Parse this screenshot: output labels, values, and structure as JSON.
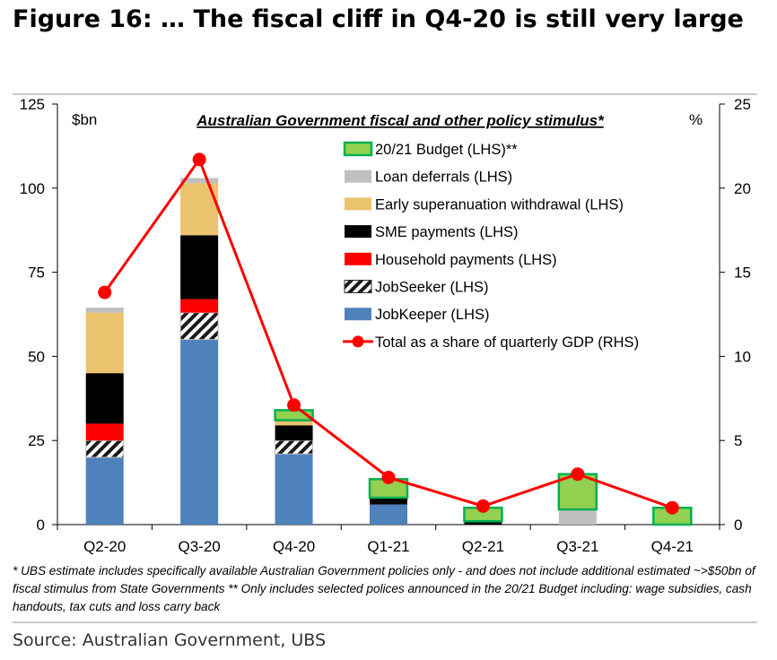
{
  "title": "Figure 16: … The fiscal cliff in Q4-20 is still very large",
  "footnote": "* UBS estimate includes specifically available Australian Government policies only - and does not  include additional estimated  ~>$50bn of fiscal stimulus from State Governments  ** Only includes selected polices announced in the 20/21 Budget including: wage subsidies, cash handouts, tax cuts and loss carry back",
  "source": "Source: Australian Government, UBS",
  "colors": {
    "jobkeeper": "#4f81bd",
    "jobseeker": "#ffffff",
    "household": "#ff0000",
    "sme": "#000000",
    "super": "#ebc26e",
    "loan": "#bfbfbf",
    "budget_fill": "#92d050",
    "budget_edge": "#00b050",
    "line": "#ff0000"
  },
  "chart_data": {
    "type": "bar",
    "stacked": true,
    "title": "Australian Government fiscal and other policy stimulus*",
    "ylabel_left": "$bn",
    "ylabel_right": "%",
    "ylim_left": [
      0,
      125
    ],
    "ylim_right": [
      0,
      25
    ],
    "yticks_left": [
      "0",
      "25",
      "50",
      "75",
      "100",
      "125"
    ],
    "yticks_right": [
      "0",
      "5",
      "10",
      "15",
      "20",
      "25"
    ],
    "categories": [
      "Q2-20",
      "Q3-20",
      "Q4-20",
      "Q1-21",
      "Q2-21",
      "Q3-21",
      "Q4-21"
    ],
    "series": [
      {
        "key": "jobkeeper",
        "name": "JobKeeper (LHS)",
        "axis": "left",
        "values": [
          20,
          55,
          21,
          6,
          0,
          0,
          0
        ]
      },
      {
        "key": "jobseeker",
        "name": "JobSeeker (LHS)",
        "axis": "left",
        "values": [
          5,
          8,
          4,
          0,
          0,
          0,
          0
        ]
      },
      {
        "key": "household",
        "name": "Household payments (LHS)",
        "axis": "left",
        "values": [
          5,
          4,
          0,
          0,
          0,
          0,
          0
        ]
      },
      {
        "key": "sme",
        "name": "SME payments (LHS)",
        "axis": "left",
        "values": [
          15,
          19,
          4.5,
          2,
          1,
          0,
          0
        ]
      },
      {
        "key": "super",
        "name": "Early superanuation withdrawal (LHS)",
        "axis": "left",
        "values": [
          18,
          15.5,
          1.5,
          0,
          0,
          0,
          0
        ]
      },
      {
        "key": "loan",
        "name": "Loan deferrals (LHS)",
        "axis": "left",
        "values": [
          1.5,
          1.5,
          0,
          0,
          0,
          4.5,
          0
        ]
      },
      {
        "key": "budget",
        "name": "20/21 Budget (LHS)**",
        "axis": "left",
        "values": [
          0,
          0,
          3,
          5.5,
          4,
          10.5,
          5
        ]
      },
      {
        "key": "total",
        "name": "Total as a share of quarterly GDP (RHS)",
        "axis": "right",
        "type": "line",
        "values": [
          13.8,
          21.7,
          7.1,
          2.8,
          1.1,
          3.0,
          1.0
        ]
      }
    ],
    "legend_order": [
      "budget",
      "loan",
      "super",
      "sme",
      "household",
      "jobseeker",
      "jobkeeper",
      "total"
    ]
  }
}
